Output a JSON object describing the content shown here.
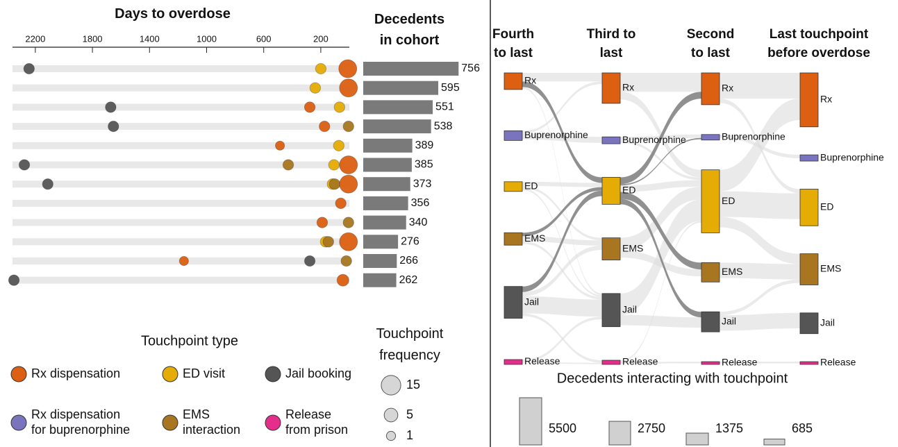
{
  "chart_data": [
    {
      "type": "dot",
      "title": "Days to overdose",
      "xlim": [
        2360,
        0
      ],
      "xticks": [
        2200,
        1800,
        1400,
        1000,
        600,
        200
      ],
      "rows": [
        {
          "points": [
            {
              "days": 2244,
              "type": 2,
              "frequency": 2
            },
            {
              "days": 200,
              "type": 1,
              "frequency": 2
            },
            {
              "days": 11,
              "type": 0,
              "frequency": 12
            }
          ]
        },
        {
          "points": [
            {
              "days": 239,
              "type": 1,
              "frequency": 2
            },
            {
              "days": 6,
              "type": 0,
              "frequency": 12
            }
          ]
        },
        {
          "points": [
            {
              "days": 1672,
              "type": 2,
              "frequency": 2
            },
            {
              "days": 277,
              "type": 0,
              "frequency": 2
            },
            {
              "days": 69,
              "type": 1,
              "frequency": 2
            }
          ]
        },
        {
          "points": [
            {
              "days": 1653,
              "type": 2,
              "frequency": 2
            },
            {
              "days": 174,
              "type": 0,
              "frequency": 2
            },
            {
              "days": 6,
              "type": 4,
              "frequency": 2
            }
          ]
        },
        {
          "points": [
            {
              "days": 486,
              "type": 0,
              "frequency": 1
            },
            {
              "days": 74,
              "type": 1,
              "frequency": 2
            }
          ]
        },
        {
          "points": [
            {
              "days": 2277,
              "type": 2,
              "frequency": 2
            },
            {
              "days": 428,
              "type": 4,
              "frequency": 2
            },
            {
              "days": 108,
              "type": 1,
              "frequency": 2
            },
            {
              "days": 6,
              "type": 0,
              "frequency": 12
            }
          ]
        },
        {
          "points": [
            {
              "days": 2113,
              "type": 2,
              "frequency": 2
            },
            {
              "days": 118,
              "type": 1,
              "frequency": 2
            },
            {
              "days": 103,
              "type": 4,
              "frequency": 2
            },
            {
              "days": 6,
              "type": 0,
              "frequency": 12
            }
          ]
        },
        {
          "points": [
            {
              "days": 60,
              "type": 0,
              "frequency": 2
            }
          ]
        },
        {
          "points": [
            {
              "days": 190,
              "type": 0,
              "frequency": 2
            },
            {
              "days": 6,
              "type": 4,
              "frequency": 2
            }
          ]
        },
        {
          "points": [
            {
              "days": 166,
              "type": 1,
              "frequency": 2
            },
            {
              "days": 147,
              "type": 4,
              "frequency": 2
            },
            {
              "days": 6,
              "type": 0,
              "frequency": 12
            }
          ]
        },
        {
          "points": [
            {
              "days": 1159,
              "type": 0,
              "frequency": 1
            },
            {
              "days": 277,
              "type": 2,
              "frequency": 2
            },
            {
              "days": 21,
              "type": 4,
              "frequency": 2
            }
          ]
        },
        {
          "points": [
            {
              "days": 2350,
              "type": 2,
              "frequency": 2
            },
            {
              "days": 45,
              "type": 0,
              "frequency": 3
            }
          ]
        }
      ],
      "legend_title": "Touchpoint type",
      "touchpoint_types": [
        {
          "name": "Rx dispensation",
          "color": "#dc5f12"
        },
        {
          "name": "ED visit",
          "color": "#e5ac06"
        },
        {
          "name": "Jail booking",
          "color": "#555555"
        },
        {
          "name": "Rx dispensation for buprenorphine",
          "color": "#7a73bd"
        },
        {
          "name": "EMS interaction",
          "color": "#a87620"
        },
        {
          "name": "Release from prison",
          "color": "#e52d8c"
        }
      ],
      "size_legend_title": "Touchpoint frequency",
      "size_legend": [
        15,
        5,
        1
      ]
    },
    {
      "type": "bar",
      "title": "Decedents in cohort",
      "values": [
        756,
        595,
        551,
        538,
        389,
        385,
        373,
        356,
        340,
        276,
        266,
        262
      ],
      "xlim": [
        0,
        760
      ],
      "color": "#7a7a7a"
    },
    {
      "type": "sankey",
      "columns": [
        {
          "title": "Fourth to last",
          "values": [
            1935,
            1130,
            1130,
            1450,
            3710,
            565
          ]
        },
        {
          "title": "Third to last",
          "values": [
            3550,
            805,
            3145,
            2580,
            3870,
            485
          ]
        },
        {
          "title": "Second to last",
          "values": [
            3710,
            645,
            7340,
            2260,
            2340,
            320
          ]
        },
        {
          "title": "Last touchpoint before overdose",
          "values": [
            6290,
            725,
            4275,
            3630,
            2420,
            320
          ]
        }
      ],
      "node_names": [
        "Rx",
        "Buprenorphine",
        "ED",
        "EMS",
        "Jail",
        "Release"
      ],
      "node_colors": [
        "#dc5f12",
        "#7a73bd",
        "#e5ac06",
        "#a87620",
        "#555555",
        "#e52d8c"
      ],
      "links": [
        {
          "stage": 0,
          "source": 0,
          "target": 0,
          "value": 1000
        },
        {
          "stage": 0,
          "source": 0,
          "target": 2,
          "value": 650,
          "highlight": true
        },
        {
          "stage": 0,
          "source": 0,
          "target": 4,
          "value": 200
        },
        {
          "stage": 0,
          "source": 1,
          "target": 0,
          "value": 300
        },
        {
          "stage": 0,
          "source": 1,
          "target": 1,
          "value": 700
        },
        {
          "stage": 0,
          "source": 2,
          "target": 2,
          "value": 500
        },
        {
          "stage": 0,
          "source": 2,
          "target": 3,
          "value": 300
        },
        {
          "stage": 0,
          "source": 2,
          "target": 4,
          "value": 200
        },
        {
          "stage": 0,
          "source": 3,
          "target": 2,
          "value": 400,
          "highlight": true
        },
        {
          "stage": 0,
          "source": 3,
          "target": 3,
          "value": 600
        },
        {
          "stage": 0,
          "source": 3,
          "target": 4,
          "value": 300
        },
        {
          "stage": 0,
          "source": 4,
          "target": 2,
          "value": 650,
          "highlight": true
        },
        {
          "stage": 0,
          "source": 4,
          "target": 3,
          "value": 500
        },
        {
          "stage": 0,
          "source": 4,
          "target": 4,
          "value": 2000
        },
        {
          "stage": 0,
          "source": 4,
          "target": 5,
          "value": 300
        },
        {
          "stage": 0,
          "source": 5,
          "target": 4,
          "value": 300
        },
        {
          "stage": 0,
          "source": 5,
          "target": 5,
          "value": 150
        },
        {
          "stage": 1,
          "source": 0,
          "target": 0,
          "value": 2200
        },
        {
          "stage": 1,
          "source": 0,
          "target": 2,
          "value": 900
        },
        {
          "stage": 1,
          "source": 1,
          "target": 1,
          "value": 400
        },
        {
          "stage": 1,
          "source": 1,
          "target": 2,
          "value": 300
        },
        {
          "stage": 1,
          "source": 2,
          "target": 0,
          "value": 800,
          "highlight": true
        },
        {
          "stage": 1,
          "source": 2,
          "target": 1,
          "value": 150,
          "highlight": true
        },
        {
          "stage": 1,
          "source": 2,
          "target": 2,
          "value": 750
        },
        {
          "stage": 1,
          "source": 2,
          "target": 3,
          "value": 800,
          "highlight": true
        },
        {
          "stage": 1,
          "source": 2,
          "target": 4,
          "value": 650,
          "highlight": true
        },
        {
          "stage": 1,
          "source": 3,
          "target": 2,
          "value": 1500
        },
        {
          "stage": 1,
          "source": 3,
          "target": 3,
          "value": 800
        },
        {
          "stage": 1,
          "source": 4,
          "target": 2,
          "value": 2500
        },
        {
          "stage": 1,
          "source": 4,
          "target": 4,
          "value": 1200
        },
        {
          "stage": 1,
          "source": 5,
          "target": 2,
          "value": 200
        },
        {
          "stage": 1,
          "source": 5,
          "target": 5,
          "value": 200
        },
        {
          "stage": 2,
          "source": 0,
          "target": 0,
          "value": 3000
        },
        {
          "stage": 2,
          "source": 0,
          "target": 2,
          "value": 500
        },
        {
          "stage": 2,
          "source": 1,
          "target": 1,
          "value": 400
        },
        {
          "stage": 2,
          "source": 2,
          "target": 0,
          "value": 2500
        },
        {
          "stage": 2,
          "source": 2,
          "target": 2,
          "value": 3000
        },
        {
          "stage": 2,
          "source": 2,
          "target": 3,
          "value": 1200
        },
        {
          "stage": 2,
          "source": 3,
          "target": 3,
          "value": 1800
        },
        {
          "stage": 2,
          "source": 4,
          "target": 3,
          "value": 400
        },
        {
          "stage": 2,
          "source": 4,
          "target": 4,
          "value": 1800
        },
        {
          "stage": 2,
          "source": 5,
          "target": 5,
          "value": 200
        }
      ],
      "size_legend_title": "Decedents interacting with touchpoint",
      "size_legend": [
        5500,
        2750,
        1375,
        685
      ]
    }
  ]
}
